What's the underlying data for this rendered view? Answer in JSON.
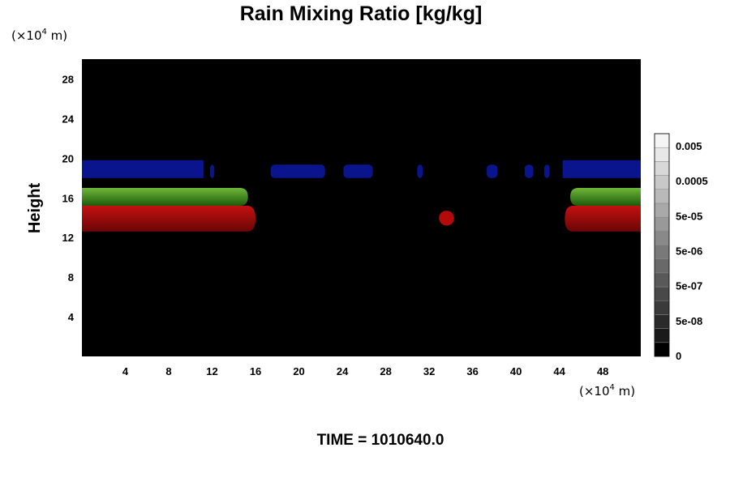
{
  "chart_data": {
    "type": "heatmap",
    "title": "Rain Mixing Ratio [kg/kg]",
    "ylabel": "Height",
    "x_unit": "m",
    "y_unit": "m",
    "x_scale_label": "(×10",
    "scale_exponent": "4",
    "x_ticks": [
      4,
      8,
      12,
      16,
      20,
      24,
      28,
      32,
      36,
      40,
      44,
      48
    ],
    "y_ticks": [
      4,
      8,
      12,
      16,
      20,
      24,
      28
    ],
    "xlim": [
      0,
      51.5
    ],
    "ylim": [
      0,
      30
    ],
    "background_color": "#000000",
    "colorbar": {
      "tick_labels": [
        "0.005",
        "0.0005",
        "5e-05",
        "5e-06",
        "5e-07",
        "5e-08",
        "0"
      ],
      "tick_values": [
        0.005,
        0.0005,
        5e-05,
        5e-06,
        5e-07,
        5e-08,
        0
      ],
      "levels": 16,
      "colors": [
        "#000000",
        "#ffffff"
      ]
    },
    "regions": [
      {
        "name": "blue-band",
        "color": "#0a148c",
        "x": [
          0,
          51.5
        ],
        "y": [
          18.0,
          19.8
        ]
      },
      {
        "name": "green-band-left",
        "color": "#3c8c14",
        "x": [
          0,
          15.3
        ],
        "y": [
          15.2,
          17.0
        ]
      },
      {
        "name": "red-band-left",
        "color": "#a00c0c",
        "x": [
          0,
          16
        ],
        "y": [
          12.6,
          15.2
        ]
      },
      {
        "name": "green-band-right",
        "color": "#3c8c14",
        "x": [
          45,
          51.5
        ],
        "y": [
          15.2,
          17.0
        ]
      },
      {
        "name": "red-band-right",
        "color": "#a00c0c",
        "x": [
          44.5,
          51.5
        ],
        "y": [
          12.6,
          15.2
        ]
      },
      {
        "name": "red-blob",
        "color": "#b40a0a",
        "x": [
          32.9,
          34.3
        ],
        "y": [
          13.2,
          14.7
        ]
      }
    ]
  },
  "footer": {
    "time_label": "TIME = 1010640.0"
  }
}
